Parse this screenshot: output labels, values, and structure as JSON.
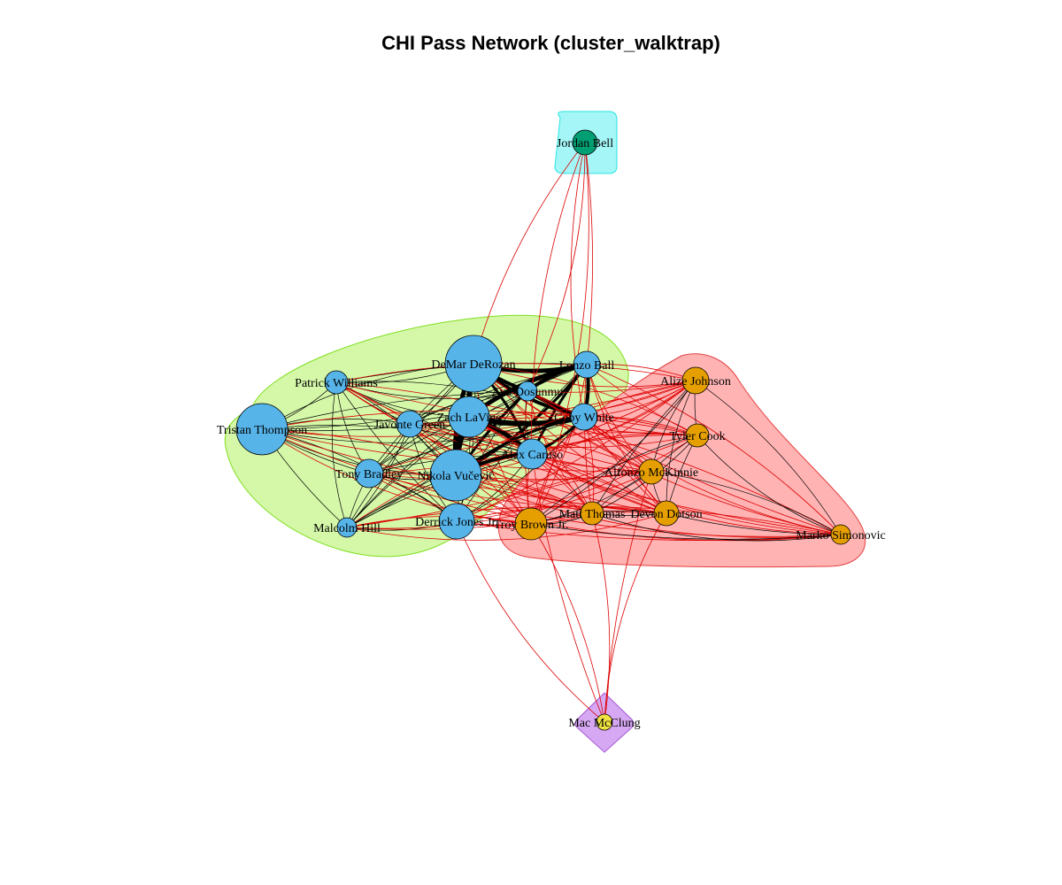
{
  "title": "CHI Pass Network (cluster_walktrap)",
  "colors": {
    "node_blue": "#56B4E9",
    "node_orange": "#E69F00",
    "node_green": "#009E73",
    "node_yellow": "#F0E442",
    "hull_green_fill": "#d4f7a8",
    "hull_green_stroke": "#7fe01e",
    "hull_red_fill": "#ffb3b3",
    "hull_red_stroke": "#e34040",
    "hull_cyan_fill": "#a5f7f7",
    "hull_cyan_stroke": "#29e3e3",
    "hull_purple_fill": "#d6a8f3",
    "hull_purple_stroke": "#a55ad6",
    "edge_within": "#000000",
    "edge_between": "#dd0000"
  },
  "nodes": [
    {
      "id": "derozan",
      "label": "DeMar DeRozan",
      "cluster": 1
    },
    {
      "id": "ball",
      "label": "Lonzo Ball",
      "cluster": 1
    },
    {
      "id": "williams",
      "label": "Patrick Williams",
      "cluster": 1
    },
    {
      "id": "dosunmu",
      "label": "Ayo Dosunmu",
      "cluster": 1
    },
    {
      "id": "thompson",
      "label": "Tristan Thompson",
      "cluster": 1
    },
    {
      "id": "green",
      "label": "Javonte Green",
      "cluster": 1
    },
    {
      "id": "lavine",
      "label": "Zach LaVine",
      "cluster": 1
    },
    {
      "id": "white",
      "label": "Coby White",
      "cluster": 1
    },
    {
      "id": "caruso",
      "label": "Alex Caruso",
      "cluster": 1
    },
    {
      "id": "bradley",
      "label": "Tony Bradley",
      "cluster": 1
    },
    {
      "id": "vucevic",
      "label": "Nikola Vučević",
      "cluster": 1
    },
    {
      "id": "jones",
      "label": "Derrick Jones Jr.",
      "cluster": 1
    },
    {
      "id": "hill",
      "label": "Malcolm Hill",
      "cluster": 1
    },
    {
      "id": "johnson",
      "label": "Alize Johnson",
      "cluster": 2
    },
    {
      "id": "cook",
      "label": "Tyler Cook",
      "cluster": 2
    },
    {
      "id": "mckinnie",
      "label": "Alfonzo McKinnie",
      "cluster": 2
    },
    {
      "id": "brown",
      "label": "Troy Brown Jr.",
      "cluster": 2
    },
    {
      "id": "thomas",
      "label": "Matt Thomas",
      "cluster": 2
    },
    {
      "id": "dotson",
      "label": "Devon Dotson",
      "cluster": 2
    },
    {
      "id": "simonovic",
      "label": "Marko Simonovic",
      "cluster": 2
    },
    {
      "id": "bell",
      "label": "Jordan Bell",
      "cluster": 3
    },
    {
      "id": "mcclung",
      "label": "Mac McClung",
      "cluster": 4
    }
  ]
}
